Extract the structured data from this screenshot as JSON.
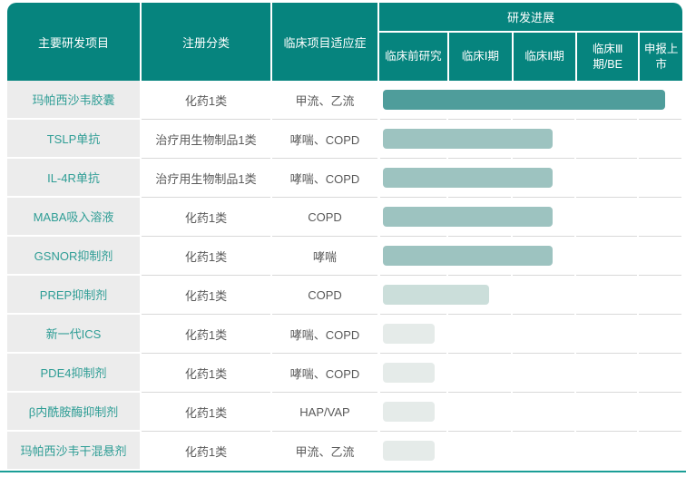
{
  "chart_data": {
    "type": "table",
    "title": "研发进展",
    "columns": [
      "主要研发项目",
      "注册分类",
      "临床项目适应症",
      "研发进展"
    ],
    "stages": [
      "临床前研究",
      "临床Ⅰ期",
      "临床Ⅱ期",
      "临床Ⅲ期/BE",
      "申报上市"
    ],
    "progress_scale_note": "progress_pct = 横向进度条占研发进展区域宽度百分比",
    "rows": [
      {
        "project": "玛帕西沙韦胶囊",
        "reg_class": "化药1类",
        "indication": "甲流、乙流",
        "stage_reached": "申报上市",
        "progress_pct": 93,
        "bar_color": "#4F9D9B"
      },
      {
        "project": "TSLP单抗",
        "reg_class": "治疗用生物制品1类",
        "indication": "哮喘、COPD",
        "stage_reached": "临床Ⅱ期",
        "progress_pct": 56,
        "bar_color": "#9DC3C0"
      },
      {
        "project": "IL-4R单抗",
        "reg_class": "治疗用生物制品1类",
        "indication": "哮喘、COPD",
        "stage_reached": "临床Ⅱ期",
        "progress_pct": 56,
        "bar_color": "#9DC3C0"
      },
      {
        "project": "MABA吸入溶液",
        "reg_class": "化药1类",
        "indication": "COPD",
        "stage_reached": "临床Ⅱ期",
        "progress_pct": 56,
        "bar_color": "#9DC3C0"
      },
      {
        "project": "GSNOR抑制剂",
        "reg_class": "化药1类",
        "indication": "哮喘",
        "stage_reached": "临床Ⅱ期",
        "progress_pct": 56,
        "bar_color": "#9DC3C0"
      },
      {
        "project": "PREP抑制剂",
        "reg_class": "化药1类",
        "indication": "COPD",
        "stage_reached": "临床Ⅰ期",
        "progress_pct": 35,
        "bar_color": "#CBDEDA"
      },
      {
        "project": "新一代ICS",
        "reg_class": "化药1类",
        "indication": "哮喘、COPD",
        "stage_reached": "临床前研究",
        "progress_pct": 17,
        "bar_color": "#E5EBE9"
      },
      {
        "project": "PDE4抑制剂",
        "reg_class": "化药1类",
        "indication": "哮喘、COPD",
        "stage_reached": "临床前研究",
        "progress_pct": 17,
        "bar_color": "#E5EBE9"
      },
      {
        "project": "β内酰胺酶抑制剂",
        "reg_class": "化药1类",
        "indication": "HAP/VAP",
        "stage_reached": "临床前研究",
        "progress_pct": 17,
        "bar_color": "#E5EBE9"
      },
      {
        "project": "玛帕西沙韦干混悬剂",
        "reg_class": "化药1类",
        "indication": "甲流、乙流",
        "stage_reached": "临床前研究",
        "progress_pct": 17,
        "bar_color": "#E5EBE9"
      }
    ]
  },
  "colors": {
    "header_bg": "#06847E",
    "header_text": "#FFFFFF",
    "project_col_bg": "#ECECEC",
    "project_text": "#2E9D95",
    "body_text": "#595959",
    "row_divider": "#D9D9D9",
    "bottom_rule": "#1B9E97",
    "bar_nda": "#4F9D9B",
    "bar_phase2": "#9DC3C0",
    "bar_phase1": "#CBDEDA",
    "bar_preclinical": "#E5EBE9"
  }
}
